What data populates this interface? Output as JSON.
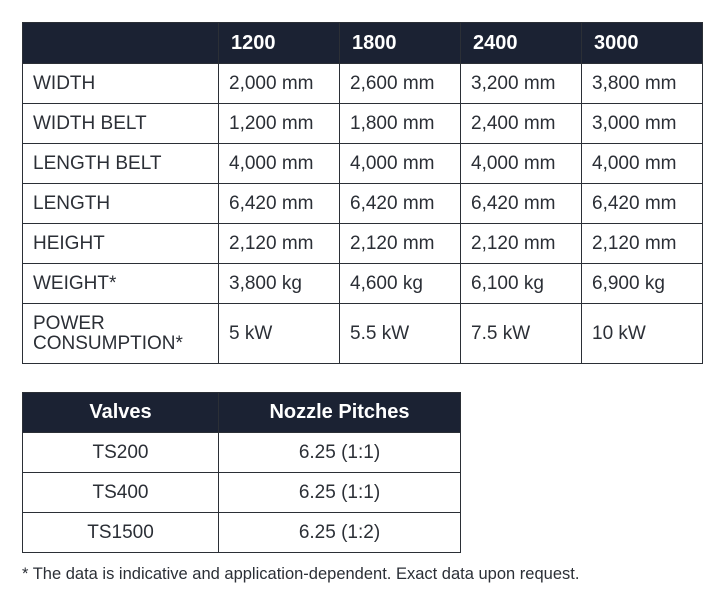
{
  "specs": {
    "columns": [
      "1200",
      "1800",
      "2400",
      "3000"
    ],
    "rows": [
      {
        "label": "WIDTH",
        "values": [
          "2,000 mm",
          "2,600 mm",
          "3,200 mm",
          "3,800 mm"
        ]
      },
      {
        "label": "WIDTH BELT",
        "values": [
          "1,200 mm",
          "1,800 mm",
          "2,400 mm",
          "3,000 mm"
        ]
      },
      {
        "label": "LENGTH BELT",
        "values": [
          "4,000 mm",
          "4,000 mm",
          "4,000 mm",
          "4,000 mm"
        ]
      },
      {
        "label": "LENGTH",
        "values": [
          "6,420 mm",
          "6,420 mm",
          "6,420 mm",
          "6,420 mm"
        ]
      },
      {
        "label": "HEIGHT",
        "values": [
          "2,120 mm",
          "2,120 mm",
          "2,120 mm",
          "2,120 mm"
        ]
      },
      {
        "label": "WEIGHT*",
        "values": [
          "3,800 kg",
          "4,600 kg",
          "6,100 kg",
          "6,900 kg"
        ]
      },
      {
        "label_lines": [
          "POWER",
          "CONSUMPTION*"
        ],
        "values": [
          "5 kW",
          "5.5 kW",
          "7.5 kW",
          "10 kW"
        ]
      }
    ]
  },
  "valves": {
    "headers": [
      "Valves",
      "Nozzle Pitches"
    ],
    "rows": [
      [
        "TS200",
        "6.25 (1:1)"
      ],
      [
        "TS400",
        "6.25 (1:1)"
      ],
      [
        "TS1500",
        "6.25 (1:2)"
      ]
    ]
  },
  "footnote": "* The data is indicative and application-dependent. Exact data upon request."
}
